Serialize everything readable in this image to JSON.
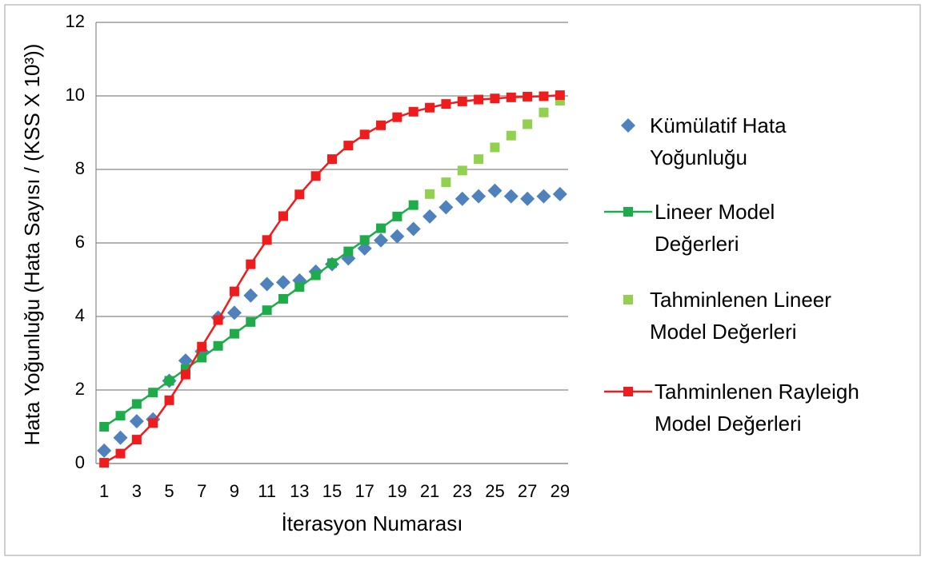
{
  "chart_data": {
    "type": "line",
    "x_label": "İterasyon Numarası",
    "y_label": "Hata Yoğunluğu (Hata Sayısı / (KSS X 10³))",
    "categories": [
      1,
      null,
      3,
      null,
      5,
      null,
      7,
      null,
      9,
      null,
      11,
      null,
      13,
      null,
      15,
      null,
      17,
      null,
      19,
      null,
      21,
      null,
      23,
      null,
      25,
      null,
      27,
      null,
      29
    ],
    "ylim": [
      0,
      12
    ],
    "yticks": [
      0,
      2,
      4,
      6,
      8,
      10,
      12
    ],
    "grid": true,
    "series": [
      {
        "name": "Kümülatif Hata Yoğunluğu",
        "color": "#4f81bd",
        "marker": "diamond",
        "line": false,
        "values": [
          0.35,
          0.7,
          1.15,
          1.2,
          2.25,
          2.8,
          3.05,
          3.97,
          4.1,
          4.57,
          4.88,
          4.93,
          4.98,
          5.22,
          5.42,
          5.58,
          5.85,
          6.07,
          6.18,
          6.38,
          6.72,
          6.97,
          7.2,
          7.27,
          7.42,
          7.27,
          7.2,
          7.27,
          7.33
        ]
      },
      {
        "name": "Lineer Model Değerleri",
        "color": "#1eac4b",
        "marker": "square",
        "line": true,
        "values": [
          1.0,
          1.3,
          1.62,
          1.93,
          2.25,
          2.57,
          2.88,
          3.2,
          3.53,
          3.85,
          4.17,
          4.48,
          4.8,
          5.12,
          5.45,
          5.77,
          6.08,
          6.4,
          6.72,
          7.03,
          null,
          null,
          null,
          null,
          null,
          null,
          null,
          null,
          null
        ]
      },
      {
        "name": "Tahminlenen Lineer Model Değerleri",
        "color": "#92d050",
        "marker": "square",
        "line": false,
        "values": [
          null,
          null,
          null,
          null,
          null,
          null,
          null,
          null,
          null,
          null,
          null,
          null,
          null,
          null,
          null,
          null,
          null,
          null,
          null,
          null,
          7.33,
          7.65,
          7.97,
          8.28,
          8.6,
          8.92,
          9.23,
          9.55,
          9.87
        ]
      },
      {
        "name": "Tahminlenen Rayleigh Model Değerleri",
        "color": "#ee1c1c",
        "marker": "square",
        "line": true,
        "values": [
          0.02,
          0.27,
          0.65,
          1.1,
          1.72,
          2.42,
          3.18,
          3.9,
          4.68,
          5.42,
          6.08,
          6.73,
          7.32,
          7.82,
          8.28,
          8.65,
          8.95,
          9.2,
          9.42,
          9.57,
          9.68,
          9.78,
          9.85,
          9.9,
          9.93,
          9.96,
          9.98,
          9.99,
          10.02
        ]
      }
    ]
  }
}
